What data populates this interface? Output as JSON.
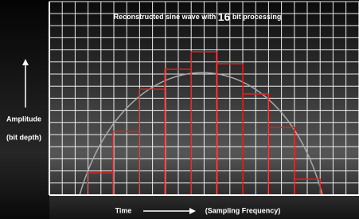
{
  "title": {
    "before": "Reconstructed sine wave with",
    "bits": "16",
    "after": "bit processing"
  },
  "y_axis": {
    "label": "Amplitude",
    "sublabel": "(bit depth)"
  },
  "x_axis": {
    "label": "Time",
    "sublabel": "(Sampling Frequency)"
  }
}
